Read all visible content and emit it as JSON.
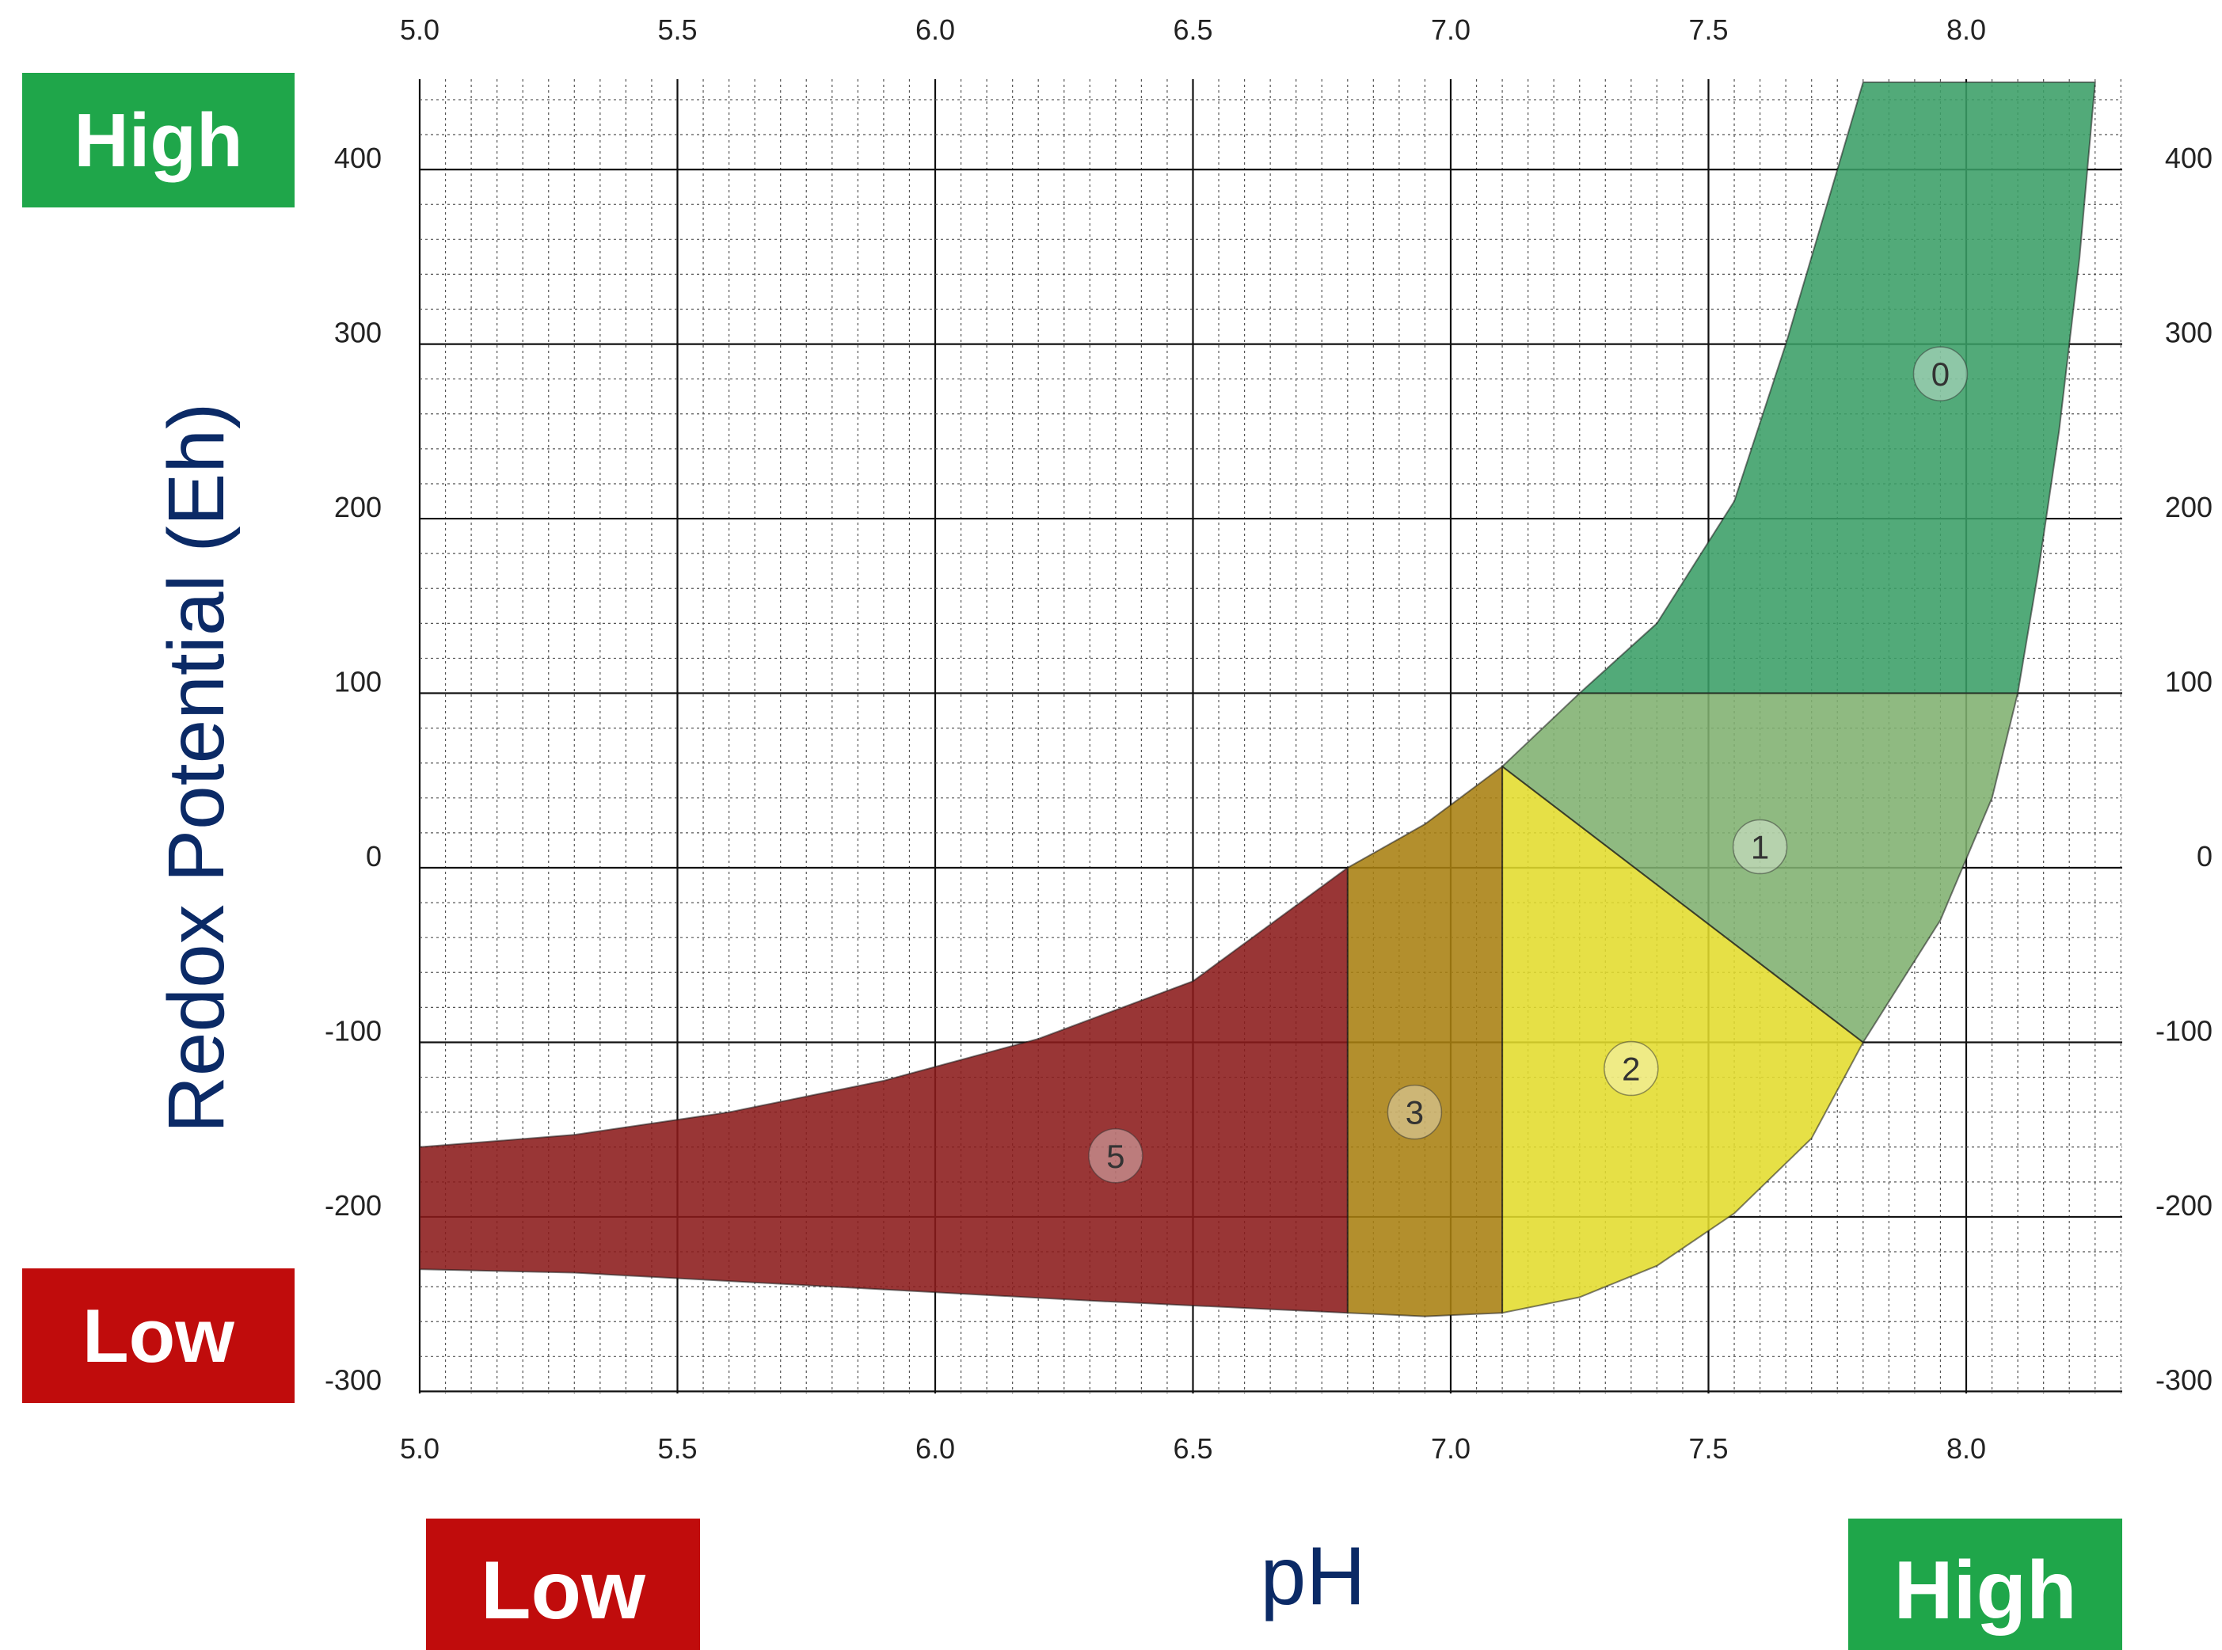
{
  "chart_data": {
    "type": "area",
    "xlabel": "pH",
    "ylabel": "Redox Potential (Eh)",
    "xlim": [
      5.0,
      8.3
    ],
    "ylim": [
      -300,
      450
    ],
    "x_ticks": [
      "5.0",
      "5.5",
      "6.0",
      "6.5",
      "7.0",
      "7.5",
      "8.0"
    ],
    "y_ticks": [
      "400",
      "300",
      "200",
      "100",
      "0",
      "-100",
      "-200",
      "-300"
    ],
    "grid": true,
    "badges": {
      "y_high": "High",
      "y_low": "Low",
      "x_low": "Low",
      "x_high": "High"
    },
    "regions": [
      {
        "label": "5",
        "color": "#8b1a1a",
        "label_at": [
          6.35,
          -165
        ],
        "polygon": [
          [
            5.0,
            -160
          ],
          [
            5.3,
            -153
          ],
          [
            5.6,
            -140
          ],
          [
            5.9,
            -122
          ],
          [
            6.2,
            -98
          ],
          [
            6.5,
            -65
          ],
          [
            6.8,
            0
          ],
          [
            6.8,
            -255
          ],
          [
            6.3,
            -248
          ],
          [
            5.8,
            -240
          ],
          [
            5.3,
            -232
          ],
          [
            5.0,
            -230
          ]
        ]
      },
      {
        "label": "3",
        "color": "#a88010",
        "label_at": [
          6.93,
          -140
        ],
        "polygon": [
          [
            6.8,
            0
          ],
          [
            6.95,
            25
          ],
          [
            7.1,
            58
          ],
          [
            7.1,
            -255
          ],
          [
            6.95,
            -257
          ],
          [
            6.8,
            -255
          ]
        ]
      },
      {
        "label": "2",
        "color": "#e3dc2c",
        "label_at": [
          7.35,
          -115
        ],
        "polygon": [
          [
            7.1,
            58
          ],
          [
            7.8,
            -100
          ],
          [
            7.7,
            -155
          ],
          [
            7.55,
            -198
          ],
          [
            7.4,
            -228
          ],
          [
            7.25,
            -246
          ],
          [
            7.1,
            -255
          ]
        ]
      },
      {
        "label": "1",
        "color": "#7fb070",
        "label_at": [
          7.6,
          12
        ],
        "polygon": [
          [
            7.1,
            58
          ],
          [
            7.25,
            100
          ],
          [
            8.1,
            100
          ],
          [
            8.05,
            40
          ],
          [
            7.95,
            -30
          ],
          [
            7.8,
            -100
          ]
        ]
      },
      {
        "label": "0",
        "color": "#3a9e67",
        "label_at": [
          7.95,
          283
        ],
        "polygon": [
          [
            7.25,
            100
          ],
          [
            7.4,
            140
          ],
          [
            7.55,
            210
          ],
          [
            7.65,
            300
          ],
          [
            7.75,
            400
          ],
          [
            7.8,
            450
          ],
          [
            8.25,
            450
          ],
          [
            8.22,
            350
          ],
          [
            8.18,
            250
          ],
          [
            8.14,
            170
          ],
          [
            8.1,
            100
          ]
        ]
      }
    ]
  }
}
